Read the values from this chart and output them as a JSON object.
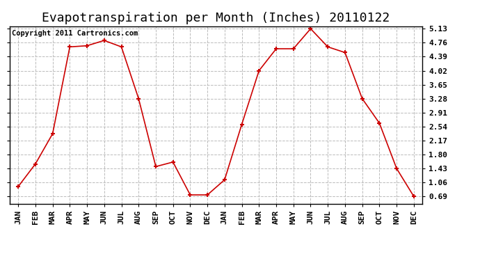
{
  "title": "Evapotranspiration per Month (Inches) 20110122",
  "copyright": "Copyright 2011 Cartronics.com",
  "x_labels": [
    "JAN",
    "FEB",
    "MAR",
    "APR",
    "MAY",
    "JUN",
    "JUL",
    "AUG",
    "SEP",
    "OCT",
    "NOV",
    "DEC",
    "JAN",
    "FEB",
    "MAR",
    "APR",
    "MAY",
    "JUN",
    "JUL",
    "AUG",
    "SEP",
    "OCT",
    "NOV",
    "DEC"
  ],
  "y_data": [
    0.95,
    1.55,
    2.35,
    4.65,
    4.68,
    4.82,
    4.65,
    3.28,
    1.48,
    1.6,
    0.73,
    0.73,
    1.13,
    2.6,
    4.02,
    4.6,
    4.6,
    5.13,
    4.65,
    4.5,
    3.28,
    2.63,
    1.43,
    0.69
  ],
  "line_color": "#cc0000",
  "marker_color": "#cc0000",
  "background_color": "#ffffff",
  "plot_bg_color": "#ffffff",
  "grid_color": "#bbbbbb",
  "y_ticks": [
    0.69,
    1.06,
    1.43,
    1.8,
    2.17,
    2.54,
    2.91,
    3.28,
    3.65,
    4.02,
    4.39,
    4.76,
    5.13
  ],
  "y_min": 0.5,
  "y_max": 5.2,
  "title_fontsize": 13,
  "tick_fontsize": 8,
  "copyright_fontsize": 7.5
}
